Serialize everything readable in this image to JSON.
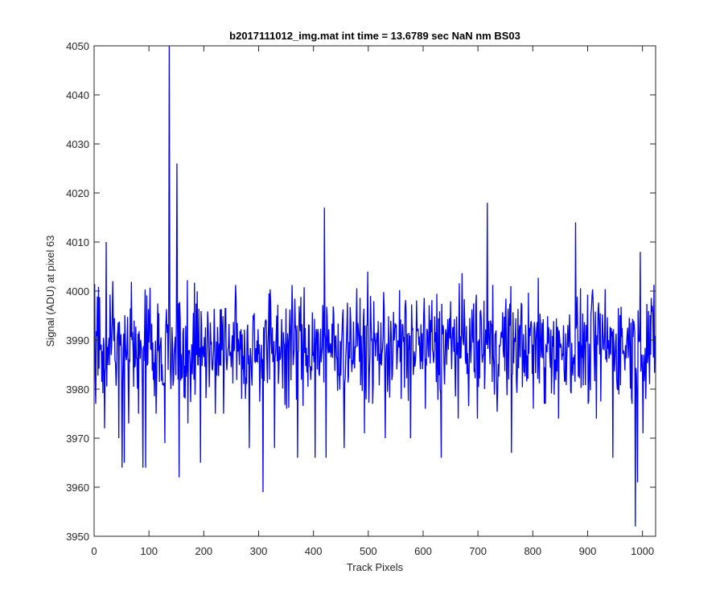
{
  "chart_data": {
    "type": "line",
    "title": "b2017111012_img.mat int time = 13.6789 sec  NaN nm BS03",
    "xlabel": "Track Pixels",
    "ylabel": "Signal (ADU) at pixel 63",
    "xlim": [
      0,
      1024
    ],
    "ylim": [
      3950,
      4050
    ],
    "xticks": [
      0,
      100,
      200,
      300,
      400,
      500,
      600,
      700,
      800,
      900,
      1000
    ],
    "yticks": [
      3950,
      3960,
      3970,
      3980,
      3990,
      4000,
      4010,
      4020,
      4030,
      4040,
      4050
    ],
    "grid": false,
    "line_color": "#0000ff",
    "series": [
      {
        "n": 1024,
        "mean": 3989,
        "spread": 5.5,
        "peaks": [
          {
            "x": 2,
            "y": 3977
          },
          {
            "x": 18,
            "y": 3972
          },
          {
            "x": 21,
            "y": 4010
          },
          {
            "x": 33,
            "y": 4002
          },
          {
            "x": 44,
            "y": 3970
          },
          {
            "x": 50,
            "y": 3964
          },
          {
            "x": 54,
            "y": 3965
          },
          {
            "x": 62,
            "y": 3973
          },
          {
            "x": 80,
            "y": 3975
          },
          {
            "x": 88,
            "y": 3964
          },
          {
            "x": 93,
            "y": 3964
          },
          {
            "x": 112,
            "y": 3975
          },
          {
            "x": 128,
            "y": 3969
          },
          {
            "x": 136,
            "y": 4050
          },
          {
            "x": 150,
            "y": 4026
          },
          {
            "x": 154,
            "y": 3962
          },
          {
            "x": 170,
            "y": 3973
          },
          {
            "x": 193,
            "y": 3965
          },
          {
            "x": 220,
            "y": 3975
          },
          {
            "x": 235,
            "y": 3975
          },
          {
            "x": 268,
            "y": 3978
          },
          {
            "x": 275,
            "y": 3978
          },
          {
            "x": 282,
            "y": 3968
          },
          {
            "x": 307,
            "y": 3959
          },
          {
            "x": 328,
            "y": 3968
          },
          {
            "x": 350,
            "y": 3976
          },
          {
            "x": 370,
            "y": 3966
          },
          {
            "x": 402,
            "y": 3966
          },
          {
            "x": 419,
            "y": 4017
          },
          {
            "x": 422,
            "y": 3966
          },
          {
            "x": 455,
            "y": 3968
          },
          {
            "x": 492,
            "y": 3971
          },
          {
            "x": 507,
            "y": 3977
          },
          {
            "x": 530,
            "y": 3970
          },
          {
            "x": 559,
            "y": 3978
          },
          {
            "x": 576,
            "y": 3970
          },
          {
            "x": 603,
            "y": 3976
          },
          {
            "x": 632,
            "y": 3966
          },
          {
            "x": 698,
            "y": 3974
          },
          {
            "x": 716,
            "y": 4018
          },
          {
            "x": 760,
            "y": 3967
          },
          {
            "x": 800,
            "y": 3976
          },
          {
            "x": 820,
            "y": 3977
          },
          {
            "x": 846,
            "y": 3974
          },
          {
            "x": 877,
            "y": 4014
          },
          {
            "x": 900,
            "y": 3977
          },
          {
            "x": 915,
            "y": 3974
          },
          {
            "x": 945,
            "y": 3966
          },
          {
            "x": 980,
            "y": 3977
          },
          {
            "x": 986,
            "y": 3952
          },
          {
            "x": 990,
            "y": 3961
          },
          {
            "x": 995,
            "y": 4008
          },
          {
            "x": 1000,
            "y": 3971
          },
          {
            "x": 1005,
            "y": 3978
          }
        ]
      }
    ]
  }
}
